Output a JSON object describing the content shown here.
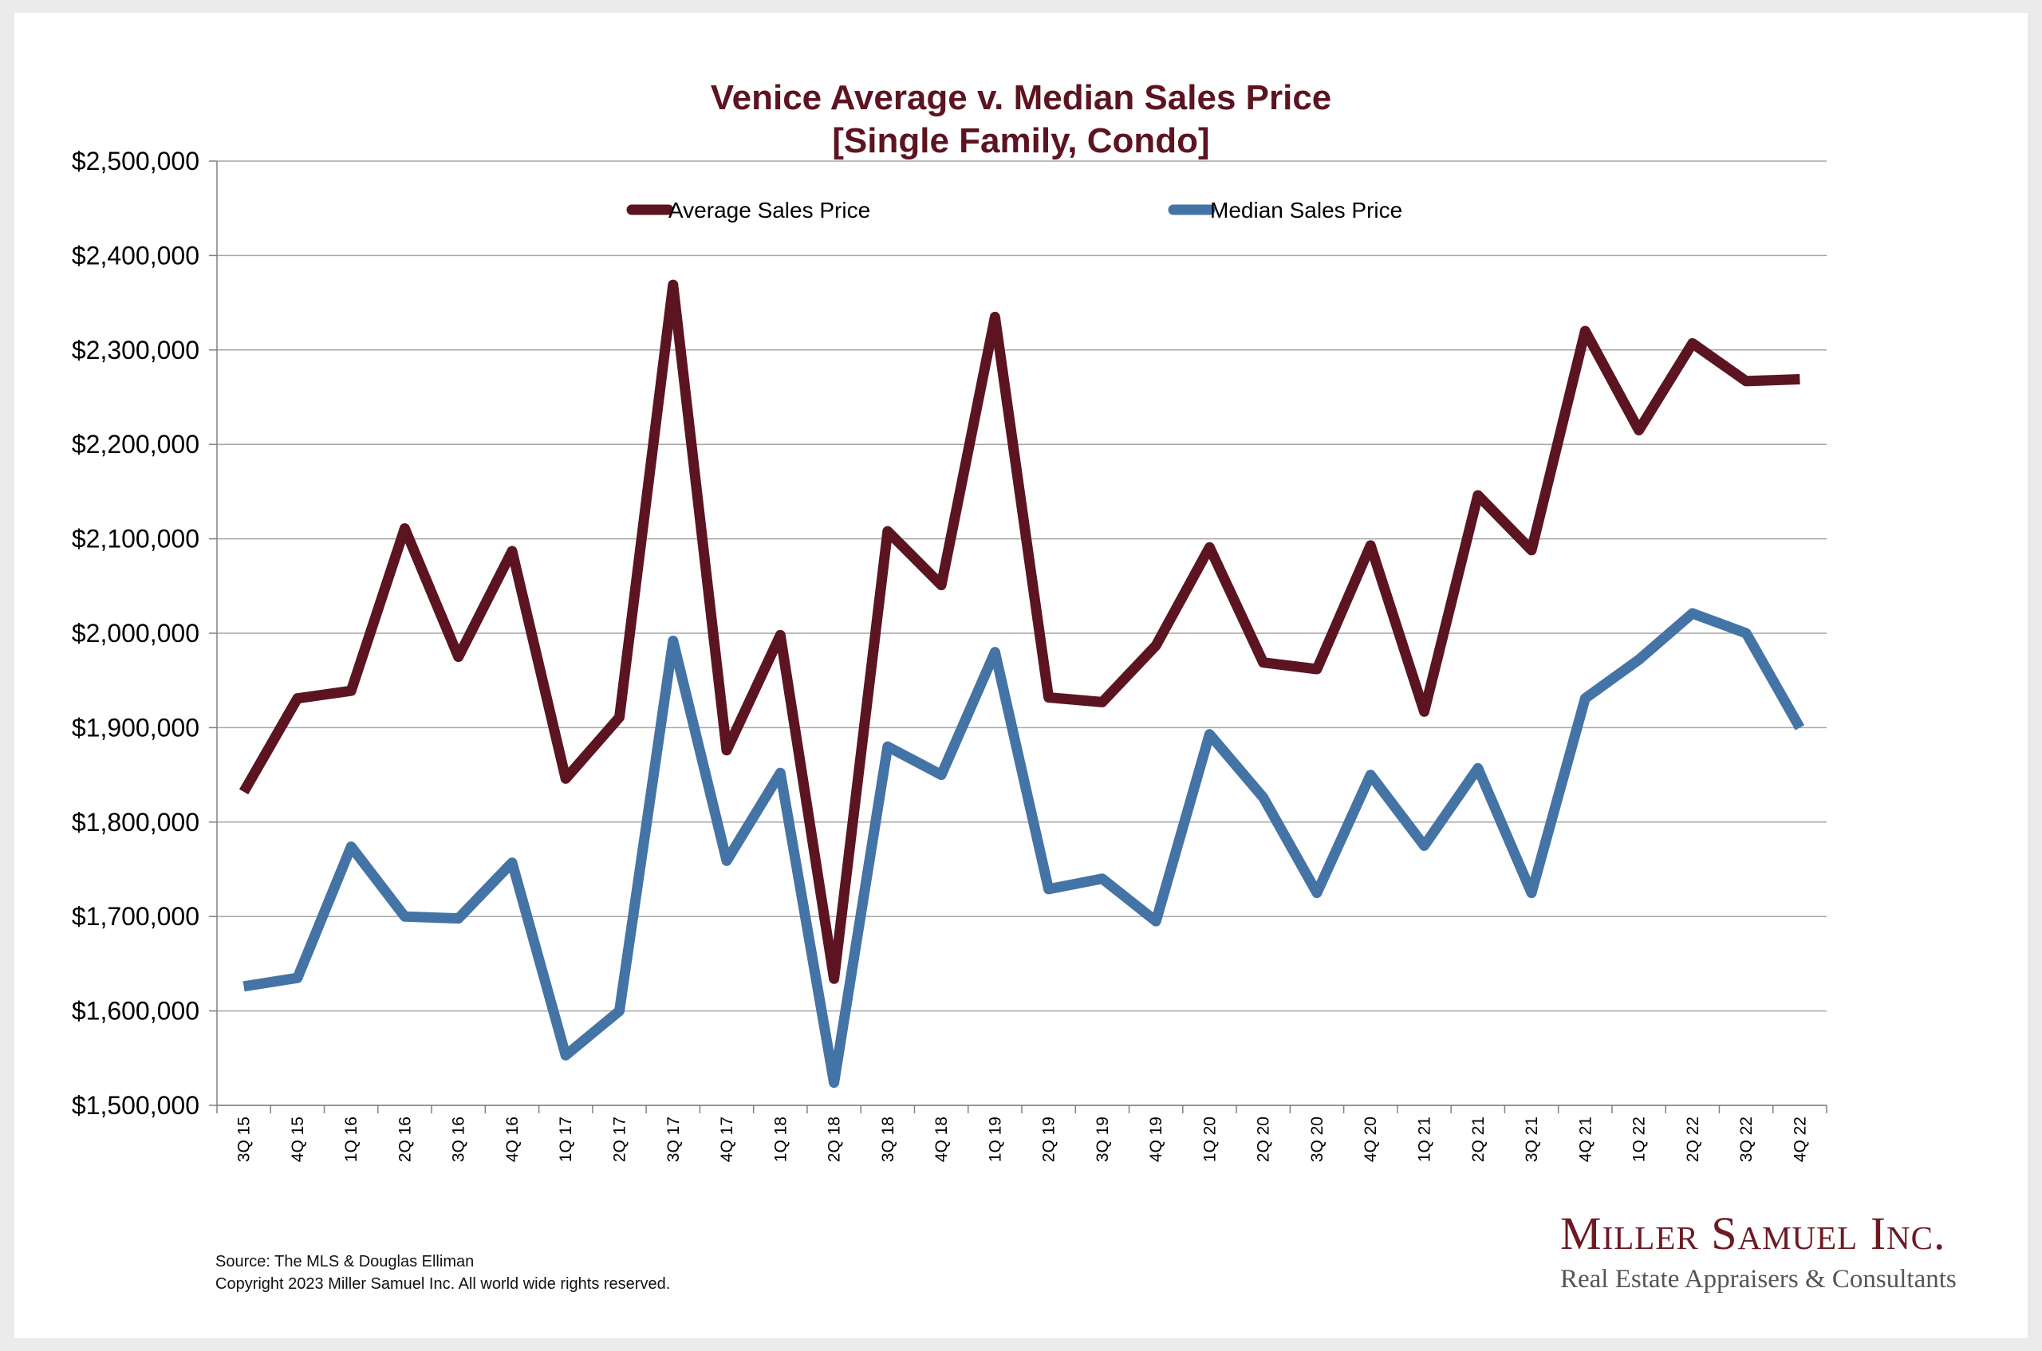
{
  "chart_data": {
    "type": "line",
    "title": "Venice Average v. Median Sales Price",
    "subtitle": "[Single Family, Condo]",
    "categories": [
      "3Q 15",
      "4Q 15",
      "1Q 16",
      "2Q 16",
      "3Q 16",
      "4Q 16",
      "1Q 17",
      "2Q 17",
      "3Q 17",
      "4Q 17",
      "1Q 18",
      "2Q 18",
      "3Q 18",
      "4Q 18",
      "1Q 19",
      "2Q 19",
      "3Q 19",
      "4Q 19",
      "1Q 20",
      "2Q 20",
      "3Q 20",
      "4Q 20",
      "1Q 21",
      "2Q 21",
      "3Q 21",
      "4Q 21",
      "1Q 22",
      "2Q 22",
      "3Q 22",
      "4Q 22"
    ],
    "series": [
      {
        "name": "Average Sales Price",
        "color": "#5c1420",
        "values": [
          1832000,
          1931000,
          1939000,
          2111000,
          1975000,
          2087000,
          1846000,
          1911000,
          2369000,
          1876000,
          1998000,
          1634000,
          2108000,
          2051000,
          2335000,
          1932000,
          1927000,
          1987000,
          2091000,
          1969000,
          1962000,
          2093000,
          1917000,
          2146000,
          2088000,
          2320000,
          2215000,
          2307000,
          2267000,
          2269000
        ]
      },
      {
        "name": "Median Sales Price",
        "color": "#4473a6",
        "values": [
          1626000,
          1635000,
          1774000,
          1700000,
          1698000,
          1757000,
          1553000,
          1600000,
          1992000,
          1759000,
          1852000,
          1524000,
          1880000,
          1850000,
          1980000,
          1729000,
          1740000,
          1695000,
          1893000,
          1826000,
          1725000,
          1850000,
          1775000,
          1857000,
          1725000,
          1931000,
          1972000,
          2021000,
          2000000,
          1900000
        ]
      }
    ],
    "ylim": [
      1500000,
      2500000
    ],
    "yticks": [
      1500000,
      1600000,
      1700000,
      1800000,
      1900000,
      2000000,
      2100000,
      2200000,
      2300000,
      2400000,
      2500000
    ],
    "ytick_labels": [
      "$1,500,000",
      "$1,600,000",
      "$1,700,000",
      "$1,800,000",
      "$1,900,000",
      "$2,000,000",
      "$2,100,000",
      "$2,200,000",
      "$2,300,000",
      "$2,400,000",
      "$2,500,000"
    ],
    "xlabel": "",
    "ylabel": "",
    "grid": true,
    "legend": "top"
  },
  "footer": {
    "source": "Source: The MLS & Douglas Elliman",
    "copyright": "Copyright 2023 Miller Samuel Inc.  All world wide rights reserved."
  },
  "logo": {
    "name": "Miller Samuel Inc.",
    "tagline": "Real Estate Appraisers & Consultants"
  }
}
